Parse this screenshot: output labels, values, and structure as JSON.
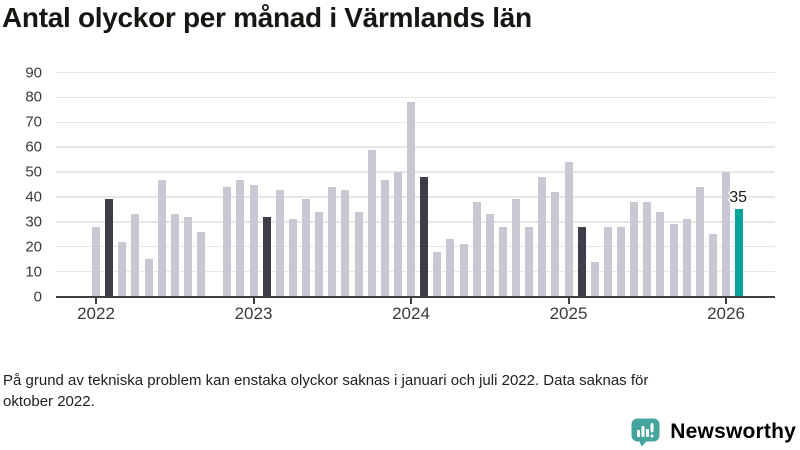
{
  "header": {
    "title": "Antal olyckor per månad i Värmlands län"
  },
  "chart_data": {
    "type": "bar",
    "title": "Antal olyckor per månad i Värmlands län",
    "ylim": [
      0,
      90
    ],
    "y_ticks": [
      0,
      10,
      20,
      30,
      40,
      50,
      60,
      70,
      80,
      90
    ],
    "x_tick_labels": [
      "2022",
      "2023",
      "2024",
      "2025",
      "2026"
    ],
    "categories": [
      "2022-01",
      "2022-02",
      "2022-03",
      "2022-04",
      "2022-05",
      "2022-06",
      "2022-07",
      "2022-08",
      "2022-09",
      "2022-10",
      "2022-11",
      "2022-12",
      "2023-01",
      "2023-02",
      "2023-03",
      "2023-04",
      "2023-05",
      "2023-06",
      "2023-07",
      "2023-08",
      "2023-09",
      "2023-10",
      "2023-11",
      "2023-12",
      "2024-01",
      "2024-02",
      "2024-03",
      "2024-04",
      "2024-05",
      "2024-06",
      "2024-07",
      "2024-08",
      "2024-09",
      "2024-10",
      "2024-11",
      "2024-12",
      "2025-01",
      "2025-02",
      "2025-03",
      "2025-04",
      "2025-05",
      "2025-06",
      "2025-07",
      "2025-08",
      "2025-09",
      "2025-10",
      "2025-11",
      "2025-12",
      "2026-01",
      "2026-02"
    ],
    "values": [
      28,
      39,
      22,
      33,
      15,
      47,
      33,
      32,
      26,
      null,
      44,
      47,
      45,
      32,
      43,
      31,
      39,
      34,
      44,
      43,
      34,
      59,
      47,
      50,
      78,
      48,
      18,
      23,
      21,
      38,
      33,
      28,
      39,
      28,
      48,
      42,
      54,
      28,
      14,
      28,
      28,
      38,
      38,
      34,
      29,
      31,
      44,
      25,
      50,
      35
    ],
    "highlight": {
      "dark_indices": [
        1,
        13,
        25,
        37
      ],
      "teal_index": 49
    },
    "data_labels": [
      {
        "index": 49,
        "text": "35"
      }
    ],
    "colors": {
      "regular": "#c9c7d2",
      "dark": "#3e3d4a",
      "teal": "#00a39b",
      "axis": "#3f3f3f",
      "gridline": "#e7e7e7"
    },
    "grid": "horizontal",
    "legend": "none"
  },
  "footer": {
    "line1": "På grund av tekniska problem kan enstaka olyckor saknas i januari och juli 2022. Data saknas för",
    "line2": "oktober 2022."
  },
  "branding": {
    "name": "Newsworthy",
    "color": "#45a49d"
  }
}
